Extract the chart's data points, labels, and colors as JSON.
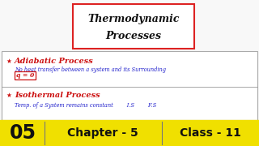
{
  "bg_color": "#f8f8f8",
  "bottom_bar_color": "#f0e000",
  "title_line1": "Thermodynamic",
  "title_line2": "Processes",
  "title_box_color": "#ffffff",
  "title_box_edge": "#dd2222",
  "bullet": "★",
  "section1_title": "Adiabatic Process",
  "section1_desc": "No heat transfer between a system and its Surrounding",
  "section1_formula": "q = 0",
  "section2_title": "Isothermal Process",
  "section2_desc": "Temp. of a System remains constant        I.S        F.S",
  "bottom_left": "05",
  "bottom_middle": "Chapter - 5",
  "bottom_right": "Class - 11",
  "bottom_text_color": "#111111",
  "red_color": "#cc1111",
  "blue_color": "#2222cc",
  "dark_color": "#111111",
  "white": "#ffffff",
  "divider_color": "#999999",
  "content_box_edge": "#aaaaaa",
  "content_bg": "#ffffff"
}
